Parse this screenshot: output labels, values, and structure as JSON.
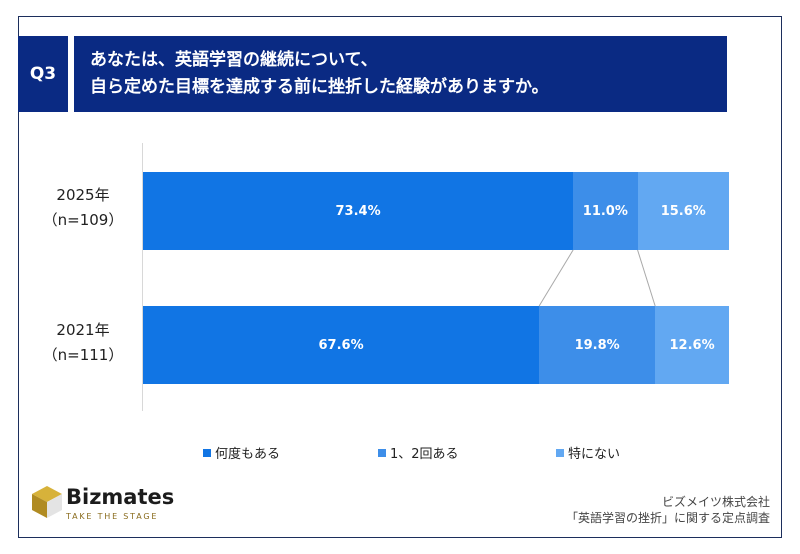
{
  "question": {
    "badge": "Q3",
    "line1": "あなたは、英語学習の継続について、",
    "line2": "自ら定めた目標を達成する前に挫折した経験がありますか。"
  },
  "chart_data": {
    "type": "bar",
    "orientation": "horizontal",
    "stacked": true,
    "normalized_percent": true,
    "categories": [
      {
        "year": "2025年",
        "n": "（n=109）"
      },
      {
        "year": "2021年",
        "n": "（n=111）"
      }
    ],
    "series": [
      {
        "name": "何度もある",
        "color": "#1175e4",
        "values": [
          73.4,
          67.6
        ],
        "labels": [
          "73.4%",
          "67.6%"
        ]
      },
      {
        "name": "1、2回ある",
        "color": "#3d8ee9",
        "values": [
          11.0,
          19.8
        ],
        "labels": [
          "11.0%",
          "19.8%"
        ]
      },
      {
        "name": "特にない",
        "color": "#62a8f2",
        "values": [
          15.6,
          12.6
        ],
        "labels": [
          "15.6%",
          "12.6%"
        ]
      }
    ],
    "xlim": [
      0,
      100
    ],
    "legend_position": "bottom"
  },
  "brand": {
    "name": "Bizmates",
    "tagline": "TAKE THE STAGE"
  },
  "source": {
    "line1": "ビズメイツ株式会社",
    "line2": "「英語学習の挫折」に関する定点調査"
  }
}
